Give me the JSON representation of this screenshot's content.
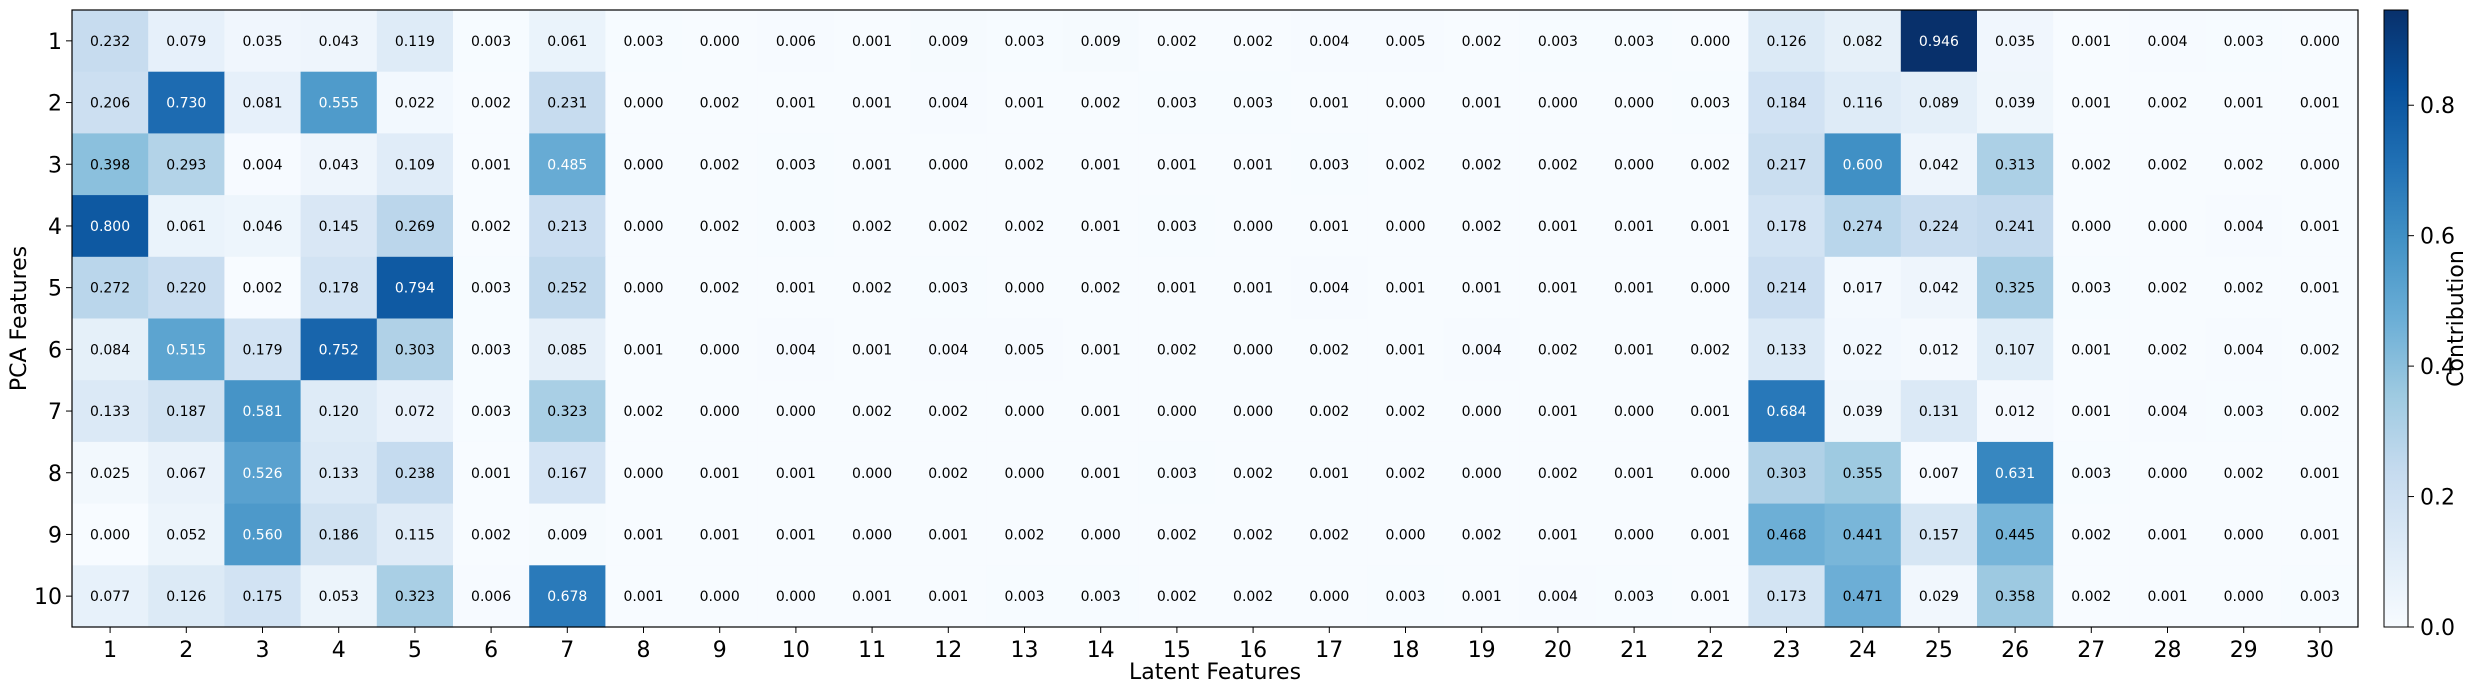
{
  "chart_data": {
    "type": "heatmap",
    "title": "",
    "xlabel": "Latent Features",
    "ylabel": "PCA Features",
    "colorbar_label": "Contribution",
    "colormap": "Blues",
    "vmin": 0.0,
    "vmax": 0.946,
    "colorbar_ticks": [
      "0.0",
      "0.2",
      "0.4",
      "0.6",
      "0.8"
    ],
    "colorbar_tick_values": [
      0.0,
      0.2,
      0.4,
      0.6,
      0.8
    ],
    "x_categories": [
      "1",
      "2",
      "3",
      "4",
      "5",
      "6",
      "7",
      "8",
      "9",
      "10",
      "11",
      "12",
      "13",
      "14",
      "15",
      "16",
      "17",
      "18",
      "19",
      "20",
      "21",
      "22",
      "23",
      "24",
      "25",
      "26",
      "27",
      "28",
      "29",
      "30"
    ],
    "y_categories": [
      "1",
      "2",
      "3",
      "4",
      "5",
      "6",
      "7",
      "8",
      "9",
      "10"
    ],
    "values": [
      [
        "0.232",
        "0.079",
        "0.035",
        "0.043",
        "0.119",
        "0.003",
        "0.061",
        "0.003",
        "0.000",
        "0.006",
        "0.001",
        "0.009",
        "0.003",
        "0.009",
        "0.002",
        "0.002",
        "0.004",
        "0.005",
        "0.002",
        "0.003",
        "0.003",
        "0.000",
        "0.126",
        "0.082",
        "0.946",
        "0.035",
        "0.001",
        "0.004",
        "0.003",
        "0.000"
      ],
      [
        "0.206",
        "0.730",
        "0.081",
        "0.555",
        "0.022",
        "0.002",
        "0.231",
        "0.000",
        "0.002",
        "0.001",
        "0.001",
        "0.004",
        "0.001",
        "0.002",
        "0.003",
        "0.003",
        "0.001",
        "0.000",
        "0.001",
        "0.000",
        "0.000",
        "0.003",
        "0.184",
        "0.116",
        "0.089",
        "0.039",
        "0.001",
        "0.002",
        "0.001",
        "0.001"
      ],
      [
        "0.398",
        "0.293",
        "0.004",
        "0.043",
        "0.109",
        "0.001",
        "0.485",
        "0.000",
        "0.002",
        "0.003",
        "0.001",
        "0.000",
        "0.002",
        "0.001",
        "0.001",
        "0.001",
        "0.003",
        "0.002",
        "0.002",
        "0.002",
        "0.000",
        "0.002",
        "0.217",
        "0.600",
        "0.042",
        "0.313",
        "0.002",
        "0.002",
        "0.002",
        "0.000"
      ],
      [
        "0.800",
        "0.061",
        "0.046",
        "0.145",
        "0.269",
        "0.002",
        "0.213",
        "0.000",
        "0.002",
        "0.003",
        "0.002",
        "0.002",
        "0.002",
        "0.001",
        "0.003",
        "0.000",
        "0.001",
        "0.000",
        "0.002",
        "0.001",
        "0.001",
        "0.001",
        "0.178",
        "0.274",
        "0.224",
        "0.241",
        "0.000",
        "0.000",
        "0.004",
        "0.001"
      ],
      [
        "0.272",
        "0.220",
        "0.002",
        "0.178",
        "0.794",
        "0.003",
        "0.252",
        "0.000",
        "0.002",
        "0.001",
        "0.002",
        "0.003",
        "0.000",
        "0.002",
        "0.001",
        "0.001",
        "0.004",
        "0.001",
        "0.001",
        "0.001",
        "0.001",
        "0.000",
        "0.214",
        "0.017",
        "0.042",
        "0.325",
        "0.003",
        "0.002",
        "0.002",
        "0.001"
      ],
      [
        "0.084",
        "0.515",
        "0.179",
        "0.752",
        "0.303",
        "0.003",
        "0.085",
        "0.001",
        "0.000",
        "0.004",
        "0.001",
        "0.004",
        "0.005",
        "0.001",
        "0.002",
        "0.000",
        "0.002",
        "0.001",
        "0.004",
        "0.002",
        "0.001",
        "0.002",
        "0.133",
        "0.022",
        "0.012",
        "0.107",
        "0.001",
        "0.002",
        "0.004",
        "0.002"
      ],
      [
        "0.133",
        "0.187",
        "0.581",
        "0.120",
        "0.072",
        "0.003",
        "0.323",
        "0.002",
        "0.000",
        "0.000",
        "0.002",
        "0.002",
        "0.000",
        "0.001",
        "0.000",
        "0.000",
        "0.002",
        "0.002",
        "0.000",
        "0.001",
        "0.000",
        "0.001",
        "0.684",
        "0.039",
        "0.131",
        "0.012",
        "0.001",
        "0.004",
        "0.003",
        "0.002"
      ],
      [
        "0.025",
        "0.067",
        "0.526",
        "0.133",
        "0.238",
        "0.001",
        "0.167",
        "0.000",
        "0.001",
        "0.001",
        "0.000",
        "0.002",
        "0.000",
        "0.001",
        "0.003",
        "0.002",
        "0.001",
        "0.002",
        "0.000",
        "0.002",
        "0.001",
        "0.000",
        "0.303",
        "0.355",
        "0.007",
        "0.631",
        "0.003",
        "0.000",
        "0.002",
        "0.001"
      ],
      [
        "0.000",
        "0.052",
        "0.560",
        "0.186",
        "0.115",
        "0.002",
        "0.009",
        "0.001",
        "0.001",
        "0.001",
        "0.000",
        "0.001",
        "0.002",
        "0.000",
        "0.002",
        "0.002",
        "0.002",
        "0.000",
        "0.002",
        "0.001",
        "0.000",
        "0.001",
        "0.468",
        "0.441",
        "0.157",
        "0.445",
        "0.002",
        "0.001",
        "0.000",
        "0.001"
      ],
      [
        "0.077",
        "0.126",
        "0.175",
        "0.053",
        "0.323",
        "0.006",
        "0.678",
        "0.001",
        "0.000",
        "0.000",
        "0.001",
        "0.001",
        "0.003",
        "0.003",
        "0.002",
        "0.002",
        "0.000",
        "0.003",
        "0.001",
        "0.004",
        "0.003",
        "0.001",
        "0.173",
        "0.471",
        "0.029",
        "0.358",
        "0.002",
        "0.001",
        "0.000",
        "0.003"
      ]
    ],
    "colors": {
      "low": "#f7fbff",
      "high": "#08306b",
      "frame": "#000000"
    }
  }
}
